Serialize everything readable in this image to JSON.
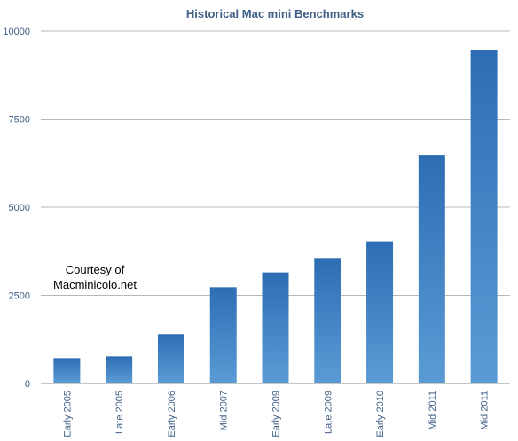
{
  "chart_data": {
    "type": "bar",
    "title": "Historical Mac mini Benchmarks",
    "categories": [
      "Early 2005",
      "Late 2005",
      "Early 2006",
      "Mid 2007",
      "Early 2009",
      "Late 2009",
      "Early 2010",
      "Mid 2011",
      "Mid 2011"
    ],
    "values": [
      720,
      770,
      1400,
      2730,
      3150,
      3560,
      4030,
      6480,
      9460
    ],
    "ylim": [
      0,
      10000
    ],
    "yticks": [
      0,
      2500,
      5000,
      7500,
      10000
    ],
    "xlabel": "",
    "ylabel": "",
    "grid": true,
    "annotation": {
      "line1": "Courtesy of",
      "line2": "Macminicolo.net"
    },
    "colors": {
      "bar_top": "#2e6db4",
      "bar_bottom": "#5b9bd5",
      "grid": "#b8b8b8",
      "text": "#3f5f86"
    }
  }
}
